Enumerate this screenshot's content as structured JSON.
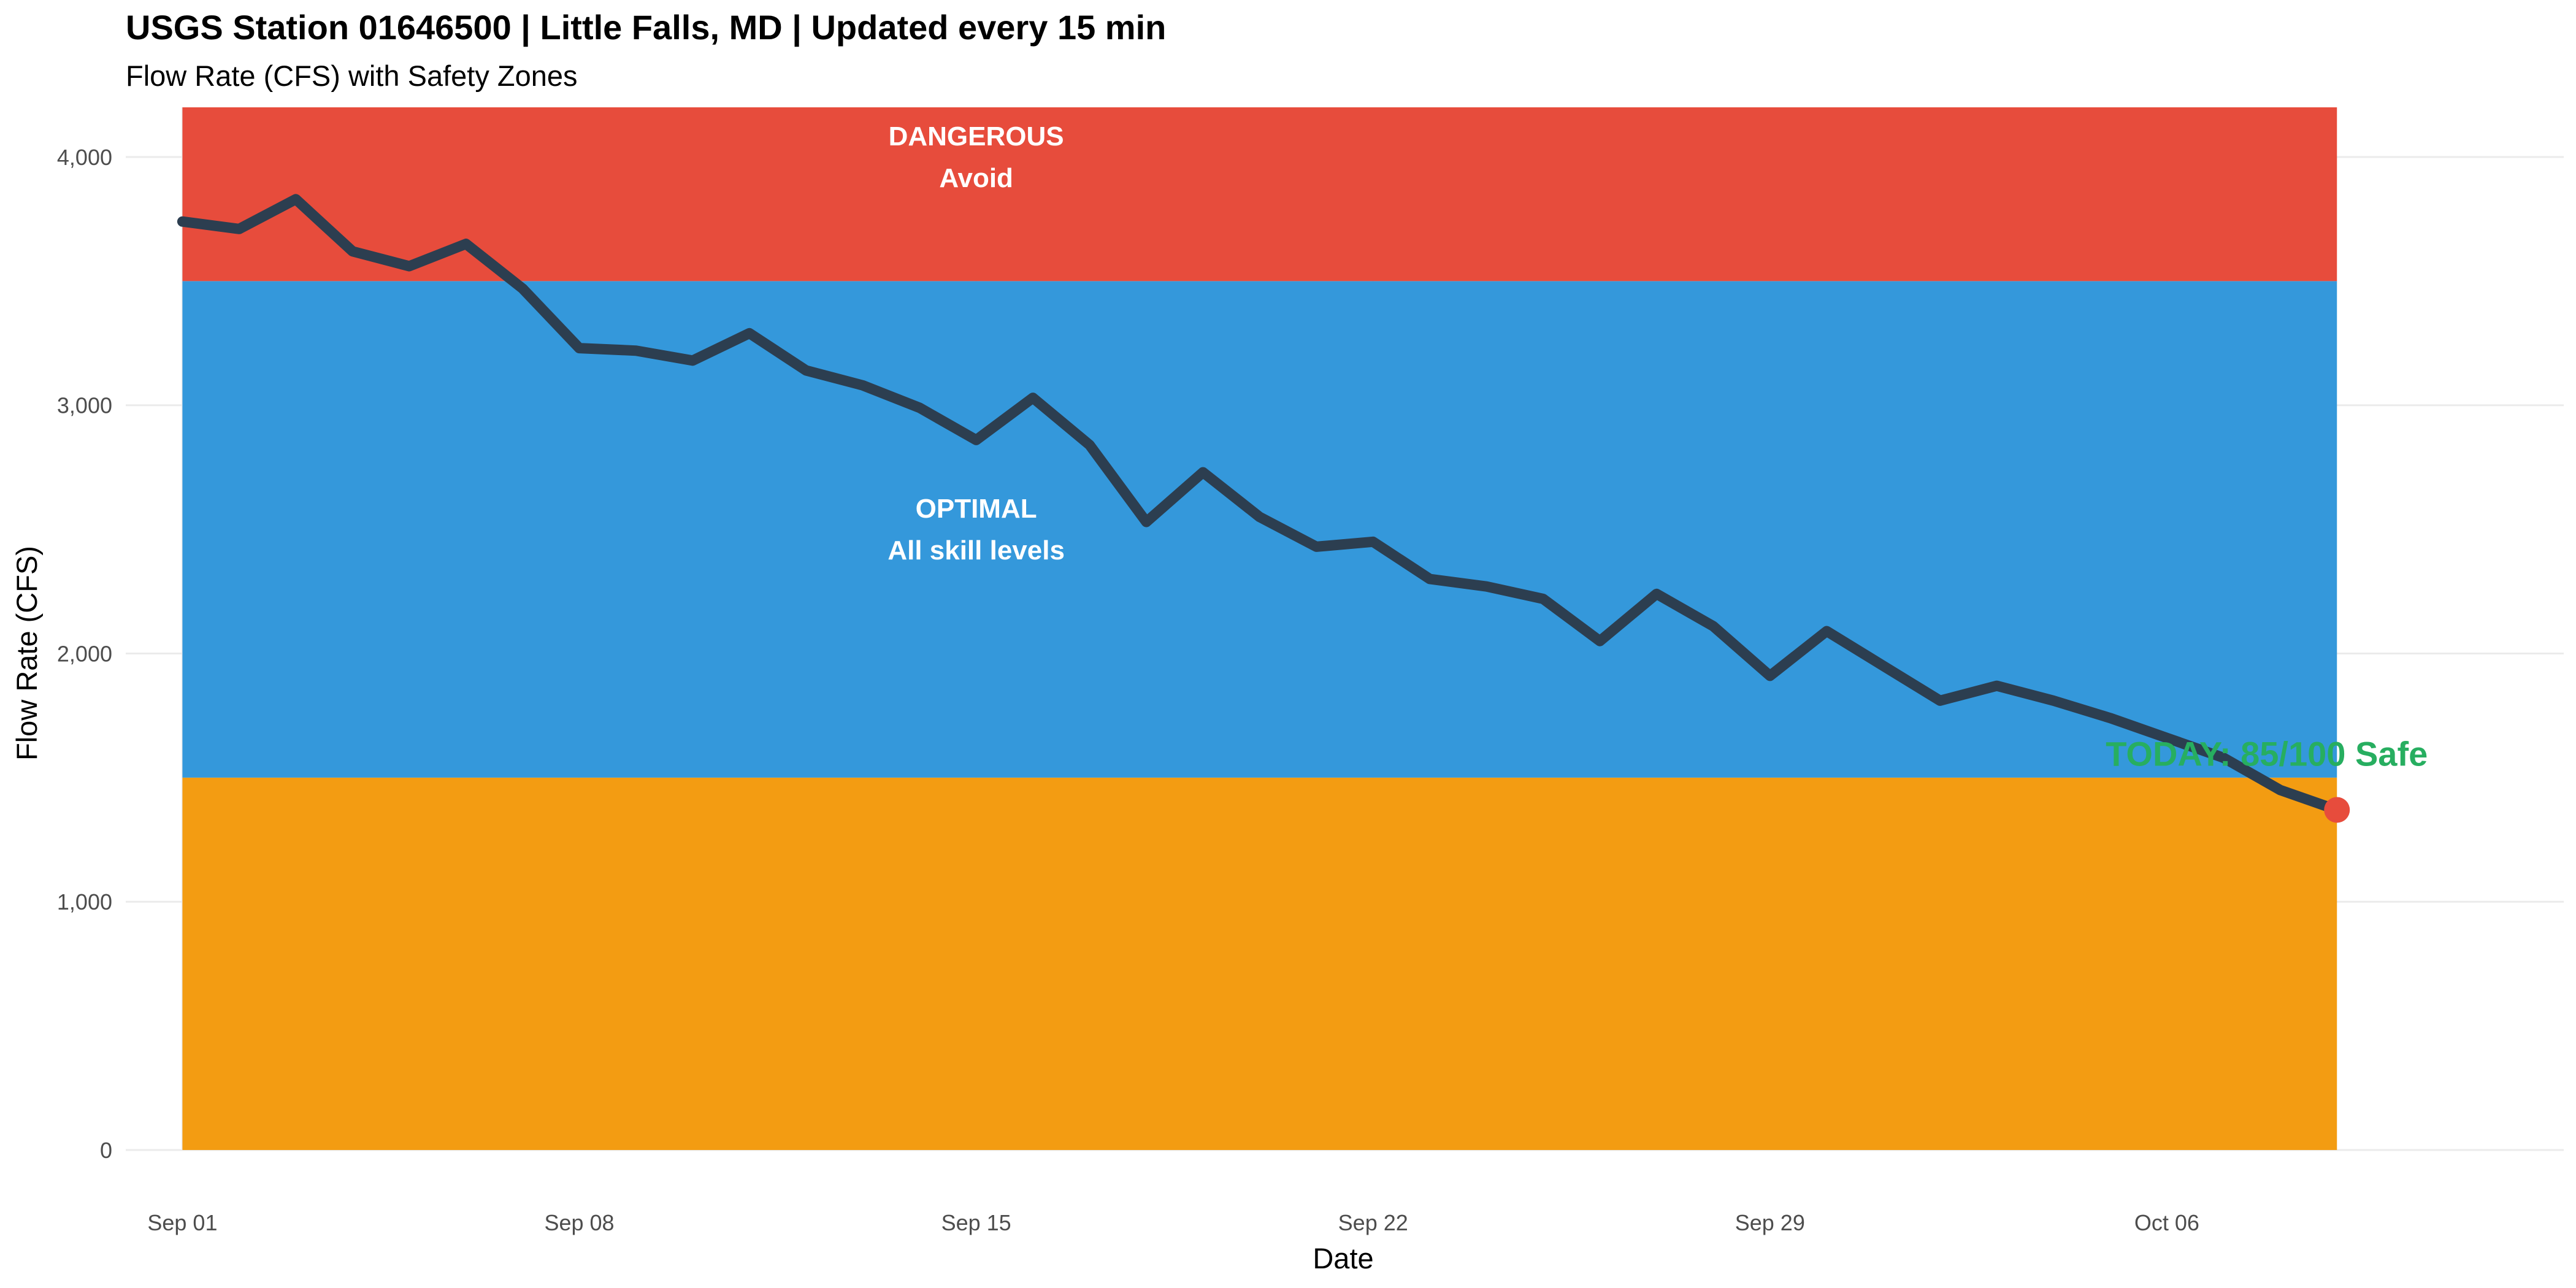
{
  "chart_data": {
    "type": "line",
    "title": "USGS Station 01646500 | Little Falls, MD | Updated every 15 min",
    "subtitle": "Flow Rate (CFS) with Safety Zones",
    "xlabel": "Date",
    "ylabel": "Flow Rate (CFS)",
    "x_range": [
      "2024-08-31",
      "2024-10-13"
    ],
    "ylim": [
      0,
      4200
    ],
    "x_ticks": [
      {
        "date": "2024-09-01",
        "label": "Sep 01"
      },
      {
        "date": "2024-09-08",
        "label": "Sep 08"
      },
      {
        "date": "2024-09-15",
        "label": "Sep 15"
      },
      {
        "date": "2024-09-22",
        "label": "Sep 22"
      },
      {
        "date": "2024-09-29",
        "label": "Sep 29"
      },
      {
        "date": "2024-10-06",
        "label": "Oct 06"
      }
    ],
    "y_ticks": [
      {
        "value": 0,
        "label": "0"
      },
      {
        "value": 1000,
        "label": "1,000"
      },
      {
        "value": 2000,
        "label": "2,000"
      },
      {
        "value": 3000,
        "label": "3,000"
      },
      {
        "value": 4000,
        "label": "4,000"
      }
    ],
    "grid": true,
    "zones": [
      {
        "name": "low",
        "ymin": 0,
        "ymax": 1500,
        "color": "#F39C12",
        "label_lines": []
      },
      {
        "name": "optimal",
        "ymin": 1500,
        "ymax": 3500,
        "color": "#3498DB",
        "label_lines": [
          "OPTIMAL",
          "All skill levels"
        ],
        "label_date": "2024-09-15",
        "label_value": 2500
      },
      {
        "name": "dangerous",
        "ymin": 3500,
        "ymax": 4200,
        "color": "#E74C3C",
        "label_lines": [
          "DANGEROUS",
          "Avoid"
        ],
        "label_date": "2024-09-15",
        "label_value": 4000
      }
    ],
    "zone_date_range": [
      "2024-09-01",
      "2024-10-09"
    ],
    "series": [
      {
        "color": "#2C3E50",
        "points": [
          {
            "date": "2024-09-01",
            "value": 3740
          },
          {
            "date": "2024-09-02",
            "value": 3710
          },
          {
            "date": "2024-09-03",
            "value": 3830
          },
          {
            "date": "2024-09-04",
            "value": 3620
          },
          {
            "date": "2024-09-05",
            "value": 3560
          },
          {
            "date": "2024-09-06",
            "value": 3650
          },
          {
            "date": "2024-09-07",
            "value": 3470
          },
          {
            "date": "2024-09-08",
            "value": 3230
          },
          {
            "date": "2024-09-09",
            "value": 3220
          },
          {
            "date": "2024-09-10",
            "value": 3180
          },
          {
            "date": "2024-09-11",
            "value": 3290
          },
          {
            "date": "2024-09-12",
            "value": 3140
          },
          {
            "date": "2024-09-13",
            "value": 3080
          },
          {
            "date": "2024-09-14",
            "value": 2990
          },
          {
            "date": "2024-09-15",
            "value": 2860
          },
          {
            "date": "2024-09-16",
            "value": 3030
          },
          {
            "date": "2024-09-17",
            "value": 2840
          },
          {
            "date": "2024-09-18",
            "value": 2530
          },
          {
            "date": "2024-09-19",
            "value": 2730
          },
          {
            "date": "2024-09-20",
            "value": 2550
          },
          {
            "date": "2024-09-21",
            "value": 2430
          },
          {
            "date": "2024-09-22",
            "value": 2450
          },
          {
            "date": "2024-09-23",
            "value": 2300
          },
          {
            "date": "2024-09-24",
            "value": 2270
          },
          {
            "date": "2024-09-25",
            "value": 2220
          },
          {
            "date": "2024-09-26",
            "value": 2050
          },
          {
            "date": "2024-09-27",
            "value": 2240
          },
          {
            "date": "2024-09-28",
            "value": 2110
          },
          {
            "date": "2024-09-29",
            "value": 1910
          },
          {
            "date": "2024-09-30",
            "value": 2090
          },
          {
            "date": "2024-10-01",
            "value": 1950
          },
          {
            "date": "2024-10-02",
            "value": 1810
          },
          {
            "date": "2024-10-03",
            "value": 1870
          },
          {
            "date": "2024-10-04",
            "value": 1810
          },
          {
            "date": "2024-10-05",
            "value": 1740
          },
          {
            "date": "2024-10-06",
            "value": 1660
          },
          {
            "date": "2024-10-07",
            "value": 1580
          },
          {
            "date": "2024-10-08",
            "value": 1450
          },
          {
            "date": "2024-10-09",
            "value": 1370
          }
        ]
      }
    ],
    "today_marker": {
      "date": "2024-10-09",
      "value": 1370,
      "color": "#E74C3C",
      "label": "TODAY: 85/100 Safe",
      "label_color": "#27AE60"
    }
  }
}
